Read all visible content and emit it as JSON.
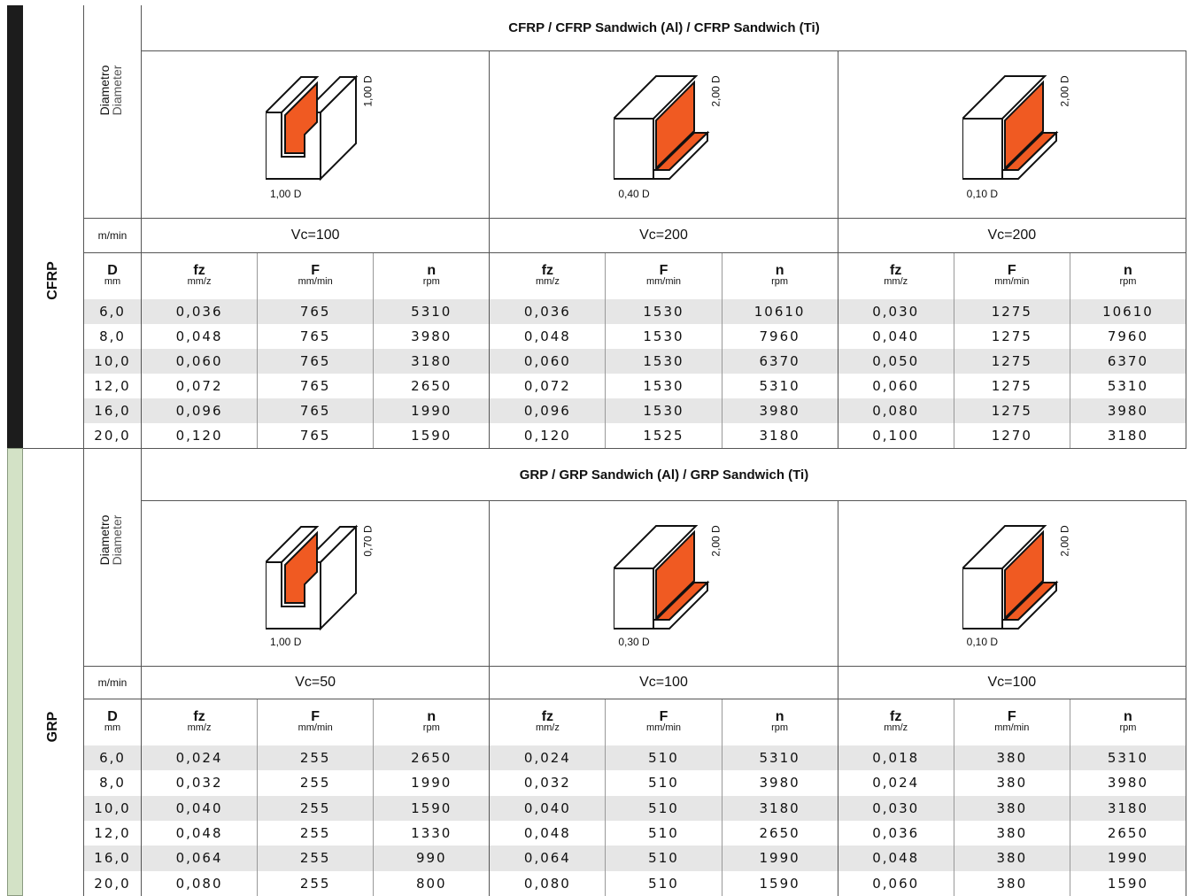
{
  "sections": [
    {
      "label": "CFRP",
      "title": "CFRP / CFRP Sandwich (Al) / CFRP Sandwich (Ti)",
      "diameter_label": [
        "Diametro",
        "Diameter"
      ],
      "diagrams": [
        {
          "height": "1,00 D",
          "width": "1,00 D"
        },
        {
          "height": "2,00 D",
          "width": "0,40 D"
        },
        {
          "height": "2,00 D",
          "width": "0,10 D"
        }
      ],
      "unit_label": "m/min",
      "vc": [
        "Vc=100",
        "Vc=200",
        "Vc=200"
      ],
      "headers": {
        "d": {
          "name": "D",
          "unit": "mm"
        },
        "cols": [
          {
            "name": "fz",
            "unit": "mm/z"
          },
          {
            "name": "F",
            "unit": "mm/min"
          },
          {
            "name": "n",
            "unit": "rpm"
          }
        ]
      },
      "rows": [
        [
          "6,0",
          "0,036",
          "765",
          "5310",
          "0,036",
          "1530",
          "10610",
          "0,030",
          "1275",
          "10610"
        ],
        [
          "8,0",
          "0,048",
          "765",
          "3980",
          "0,048",
          "1530",
          "7960",
          "0,040",
          "1275",
          "7960"
        ],
        [
          "10,0",
          "0,060",
          "765",
          "3180",
          "0,060",
          "1530",
          "6370",
          "0,050",
          "1275",
          "6370"
        ],
        [
          "12,0",
          "0,072",
          "765",
          "2650",
          "0,072",
          "1530",
          "5310",
          "0,060",
          "1275",
          "5310"
        ],
        [
          "16,0",
          "0,096",
          "765",
          "1990",
          "0,096",
          "1530",
          "3980",
          "0,080",
          "1275",
          "3980"
        ],
        [
          "20,0",
          "0,120",
          "765",
          "1590",
          "0,120",
          "1525",
          "3180",
          "0,100",
          "1270",
          "3180"
        ]
      ]
    },
    {
      "label": "GRP",
      "title": "GRP / GRP Sandwich (Al) / GRP Sandwich (Ti)",
      "diameter_label": [
        "Diametro",
        "Diameter"
      ],
      "diagrams": [
        {
          "height": "0,70 D",
          "width": "1,00 D"
        },
        {
          "height": "2,00 D",
          "width": "0,30 D"
        },
        {
          "height": "2,00 D",
          "width": "0,10 D"
        }
      ],
      "unit_label": "m/min",
      "vc": [
        "Vc=50",
        "Vc=100",
        "Vc=100"
      ],
      "headers": {
        "d": {
          "name": "D",
          "unit": "mm"
        },
        "cols": [
          {
            "name": "fz",
            "unit": "mm/z"
          },
          {
            "name": "F",
            "unit": "mm/min"
          },
          {
            "name": "n",
            "unit": "rpm"
          }
        ]
      },
      "rows": [
        [
          "6,0",
          "0,024",
          "255",
          "2650",
          "0,024",
          "510",
          "5310",
          "0,018",
          "380",
          "5310"
        ],
        [
          "8,0",
          "0,032",
          "255",
          "1990",
          "0,032",
          "510",
          "3980",
          "0,024",
          "380",
          "3980"
        ],
        [
          "10,0",
          "0,040",
          "255",
          "1590",
          "0,040",
          "510",
          "3180",
          "0,030",
          "380",
          "3180"
        ],
        [
          "12,0",
          "0,048",
          "255",
          "1330",
          "0,048",
          "510",
          "2650",
          "0,036",
          "380",
          "2650"
        ],
        [
          "16,0",
          "0,064",
          "255",
          "990",
          "0,064",
          "510",
          "1990",
          "0,048",
          "380",
          "1990"
        ],
        [
          "20,0",
          "0,080",
          "255",
          "800",
          "0,080",
          "510",
          "1590",
          "0,060",
          "380",
          "1590"
        ]
      ]
    }
  ]
}
